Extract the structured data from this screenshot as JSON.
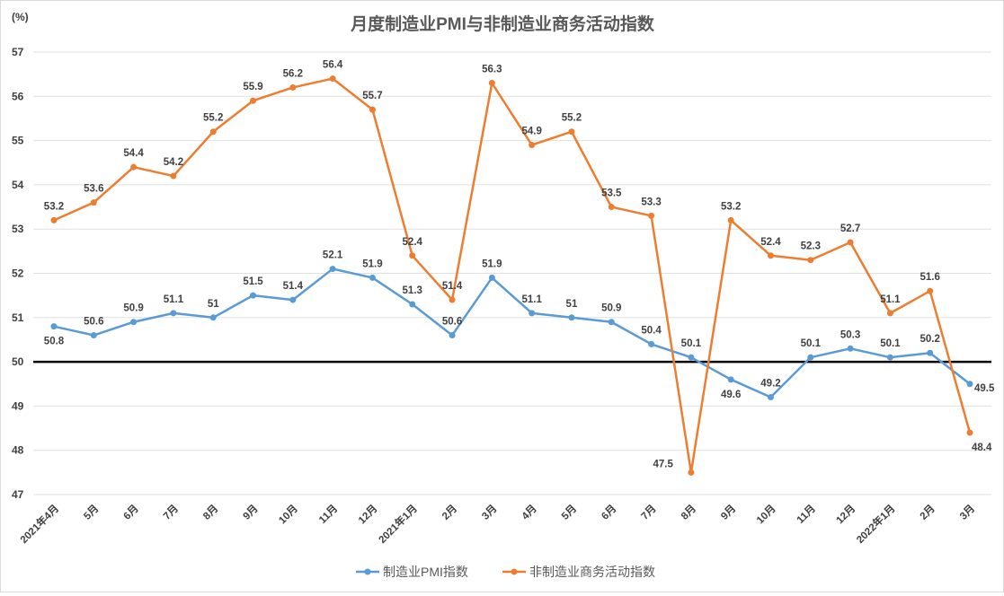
{
  "chart_data": {
    "type": "line",
    "title": "月度制造业PMI与非制造业商务活动指数",
    "ylabel": "(%)",
    "ylim": [
      47,
      57
    ],
    "yticks": [
      47,
      48,
      49,
      50,
      51,
      52,
      53,
      54,
      55,
      56,
      57
    ],
    "reference_line": 50,
    "grid": true,
    "legend_position": "bottom",
    "categories": [
      "2021年4月",
      "5月",
      "6月",
      "7月",
      "8月",
      "9月",
      "10月",
      "11月",
      "12月",
      "2021年1月",
      "2月",
      "3月",
      "4月",
      "5月",
      "6月",
      "7月",
      "8月",
      "9月",
      "10月",
      "11月",
      "12月",
      "2022年1月",
      "2月",
      "3月"
    ],
    "series": [
      {
        "name": "制造业PMI指数",
        "color": "#5b9bd5",
        "values": [
          50.8,
          50.6,
          50.9,
          51.1,
          51,
          51.5,
          51.4,
          52.1,
          51.9,
          51.3,
          50.6,
          51.9,
          51.1,
          51,
          50.9,
          50.4,
          50.1,
          49.6,
          49.2,
          50.1,
          50.3,
          50.1,
          50.2,
          49.5
        ]
      },
      {
        "name": "非制造业商务活动指数",
        "color": "#ed7d31",
        "values": [
          53.2,
          53.6,
          54.4,
          54.2,
          55.2,
          55.9,
          56.2,
          56.4,
          55.7,
          52.4,
          51.4,
          56.3,
          54.9,
          55.2,
          53.5,
          53.3,
          47.5,
          53.2,
          52.4,
          52.3,
          52.7,
          51.1,
          51.6,
          48.4
        ]
      }
    ]
  }
}
